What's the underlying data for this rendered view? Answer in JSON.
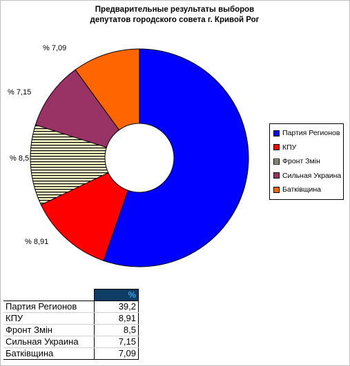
{
  "chart_data": {
    "type": "pie",
    "style": "doughnut",
    "title": [
      "Предварительные результаты выборов",
      "депутатов городского совета г. Кривой Рог"
    ],
    "labels": [
      "Партия Регионов",
      "КПУ",
      "Фронт Змін",
      "Сильная Украина",
      "Батківщина"
    ],
    "values": [
      39.2,
      8.91,
      8.5,
      7.15,
      7.09
    ],
    "data_labels": [
      "",
      "% 8,91",
      "% 8,5",
      "% 7,15",
      "% 7,09"
    ],
    "colors": [
      "#0000ff",
      "#ff0000",
      "#ffffcc",
      "#993366",
      "#ff6600"
    ],
    "patterns": [
      "solid",
      "solid",
      "horizontal-stripes",
      "solid",
      "solid"
    ],
    "legend_position": "right"
  },
  "table": {
    "header": "%",
    "rows": [
      {
        "name": "Партия Регионов",
        "value": "39,2"
      },
      {
        "name": "КПУ",
        "value": "8,91"
      },
      {
        "name": "Фронт Змін",
        "value": "8,5"
      },
      {
        "name": "Сильная Украина",
        "value": "7,15"
      },
      {
        "name": "Батківщина",
        "value": "7,09"
      }
    ]
  }
}
